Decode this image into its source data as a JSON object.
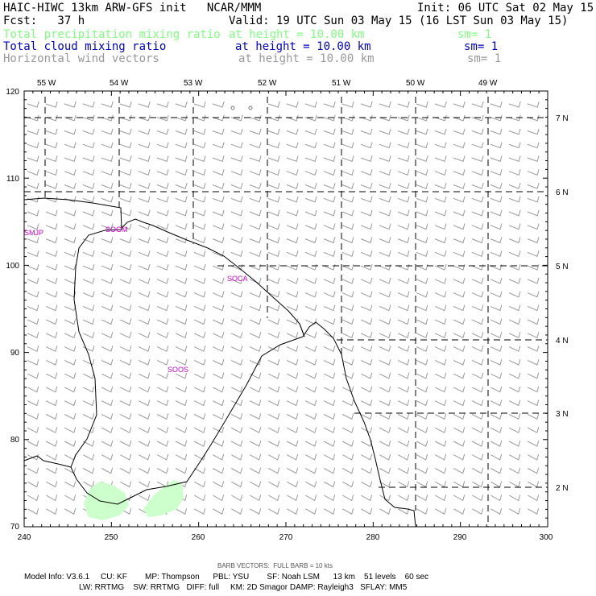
{
  "header": {
    "line1_left": "HAIC-HIWC 13km ARW-GFS init   NCAR/MMM",
    "line1_right": "Init: 06 UTC Sat 02 May 15",
    "fcst": "Fcst:   37 h",
    "valid": "Valid: 19 UTC Sun 03 May 15 (16 LST Sun 03 May 15)",
    "fields": [
      {
        "name": "Total precipitation mixing ratio",
        "height": "at height = 10.00 km",
        "sm": "sm= 1",
        "color": "#80ff80"
      },
      {
        "name": "Total cloud mixing ratio",
        "height": "at height = 10.00 km",
        "sm": "sm= 1",
        "color": "#0000cc"
      },
      {
        "name": "Horizontal wind vectors",
        "height": "at height = 10.00 km",
        "sm": "sm= 1",
        "color": "#999999"
      }
    ]
  },
  "map": {
    "lon_labels": [
      "55 W",
      "54 W",
      "53 W",
      "52 W",
      "51 W",
      "50 W",
      "49 W"
    ],
    "lat_labels": [
      "7 N",
      "6 N",
      "5 N",
      "4 N",
      "3 N",
      "2 N"
    ],
    "x_ticks": [
      "240",
      "250",
      "260",
      "270",
      "280",
      "290",
      "300"
    ],
    "y_ticks": [
      "70",
      "80",
      "90",
      "100",
      "110",
      "120"
    ],
    "stations": [
      {
        "id": "SMJP",
        "label": "SMJP"
      },
      {
        "id": "SOGM",
        "label": "SOGM"
      },
      {
        "id": "SOCA",
        "label": "SOCA"
      },
      {
        "id": "SOOS",
        "label": "SOOS"
      }
    ],
    "colors": {
      "coast": "#000000",
      "barb": "#999999",
      "precip": "#ccffcc",
      "station": "#cc00cc"
    }
  },
  "footer": {
    "barb_note": "BARB VECTORS:  FULL BARB = 10 kts",
    "model_line1": "Model Info: V3.6.1     CU: KF        MP: Thompson      PBL: YSU        SF: Noah LSM      13 km    51 levels    60 sec",
    "model_line2": "LW: RRTMG    SW: RRTMG   DIFF: full     KM: 2D Smagor DAMP: Rayleigh3   SFLAY: MM5"
  }
}
